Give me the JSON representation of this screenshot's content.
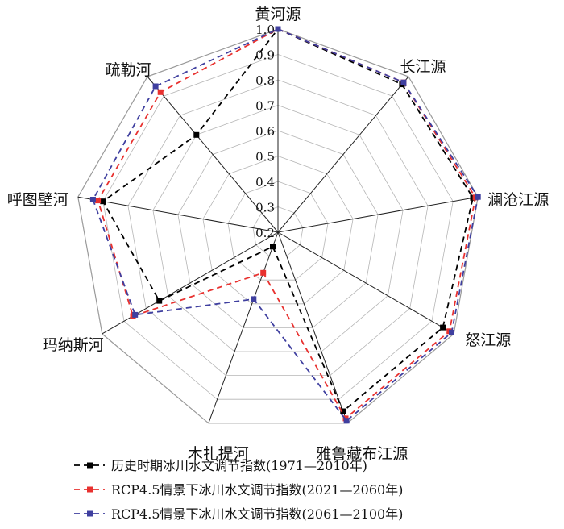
{
  "chart_data": {
    "type": "radar",
    "title": "",
    "r_range": [
      0.2,
      1.0
    ],
    "r_ticks": [
      "0.2",
      "0.3",
      "0.4",
      "0.5",
      "0.6",
      "0.7",
      "0.8",
      "0.9",
      "1.0"
    ],
    "r_tick_values": [
      0.2,
      0.3,
      0.4,
      0.5,
      0.6,
      0.7,
      0.8,
      0.9,
      1.0
    ],
    "categories": [
      "黄河源",
      "长江源",
      "澜沧江源",
      "怒江源",
      "雅鲁藏布江源",
      "木扎提河",
      "玛纳斯河",
      "呼图壁河",
      "疏勒河"
    ],
    "grid": true,
    "legend_position": "bottom",
    "series": [
      {
        "name": "历史时期冰川水文调节指数(1971—2010年)",
        "color": "#000000",
        "values": [
          1.0,
          0.96,
          0.98,
          0.95,
          0.95,
          0.26,
          0.74,
          0.9,
          0.7
        ]
      },
      {
        "name": "RCP4.5情景下冰川水文调节指数(2021—2060年)",
        "color": "#e8312f",
        "values": [
          1.0,
          0.97,
          0.99,
          0.98,
          0.98,
          0.37,
          0.86,
          0.92,
          0.92
        ]
      },
      {
        "name": "RCP4.5情景下冰川水文调节指数(2061—2100年)",
        "color": "#3f3f9f",
        "values": [
          1.0,
          0.97,
          1.0,
          0.99,
          0.99,
          0.48,
          0.85,
          0.94,
          0.95
        ]
      }
    ]
  }
}
